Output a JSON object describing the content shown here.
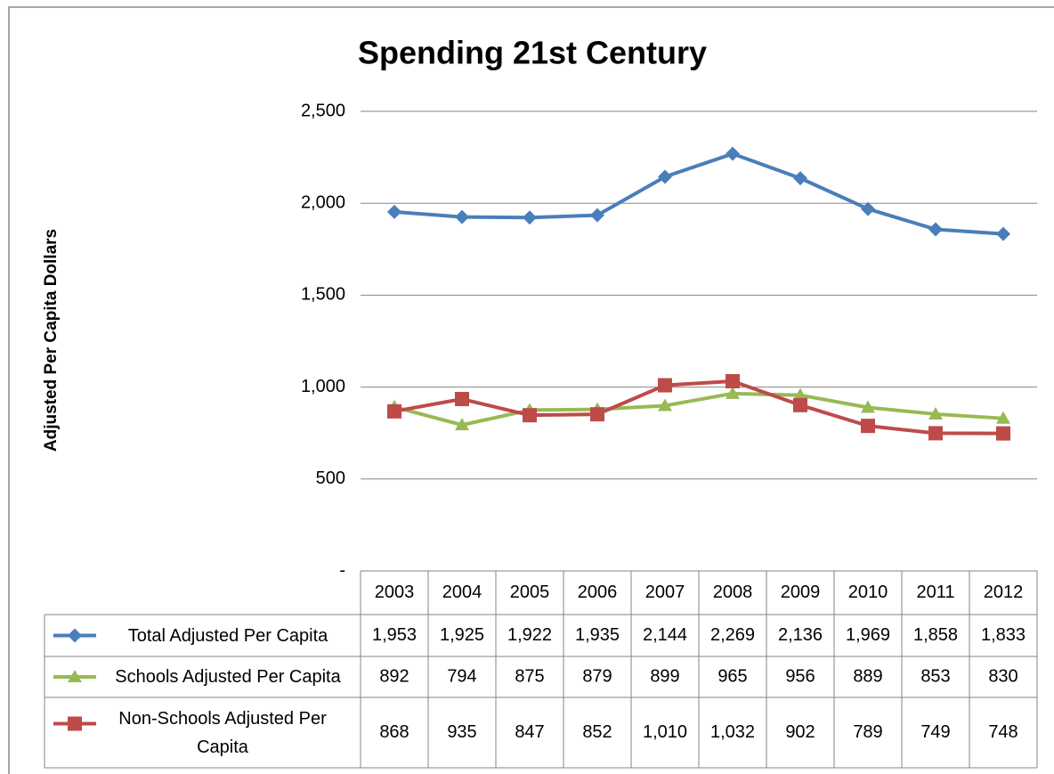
{
  "chart_data": {
    "type": "line",
    "title": "Spending 21st Century",
    "y_label": "Adjusted Per Capita Dollars",
    "categories": [
      "2003",
      "2004",
      "2005",
      "2006",
      "2007",
      "2008",
      "2009",
      "2010",
      "2011",
      "2012"
    ],
    "ylim": [
      0,
      2500
    ],
    "yticks": [
      {
        "value": 0,
        "label": "-"
      },
      500,
      {
        "value": 1000,
        "label": "1,000"
      },
      {
        "value": 1500,
        "label": "1,500"
      },
      {
        "value": 2000,
        "label": "2,000"
      },
      {
        "value": 2500,
        "label": "2,500"
      }
    ],
    "grid": true,
    "series": [
      {
        "name": "Total Adjusted Per Capita",
        "color": "#4a7ebb",
        "marker": "diamond",
        "values": [
          1953,
          1925,
          1922,
          1935,
          2144,
          2269,
          2136,
          1969,
          1858,
          1833
        ],
        "value_labels": [
          "1,953",
          "1,925",
          "1,922",
          "1,935",
          "2,144",
          "2,269",
          "2,136",
          "1,969",
          "1,858",
          "1,833"
        ]
      },
      {
        "name": "Schools Adjusted Per Capita",
        "color": "#98b954",
        "marker": "triangle",
        "values": [
          892,
          794,
          875,
          879,
          899,
          965,
          956,
          889,
          853,
          830
        ],
        "value_labels": [
          "892",
          "794",
          "875",
          "879",
          "899",
          "965",
          "956",
          "889",
          "853",
          "830"
        ]
      },
      {
        "name": "Non-Schools Adjusted Per Capita",
        "color": "#be4b48",
        "marker": "square",
        "values": [
          868,
          935,
          847,
          852,
          1010,
          1032,
          902,
          789,
          749,
          748
        ],
        "value_labels": [
          "868",
          "935",
          "847",
          "852",
          "1,010",
          "1,032",
          "902",
          "789",
          "749",
          "748"
        ]
      }
    ]
  }
}
